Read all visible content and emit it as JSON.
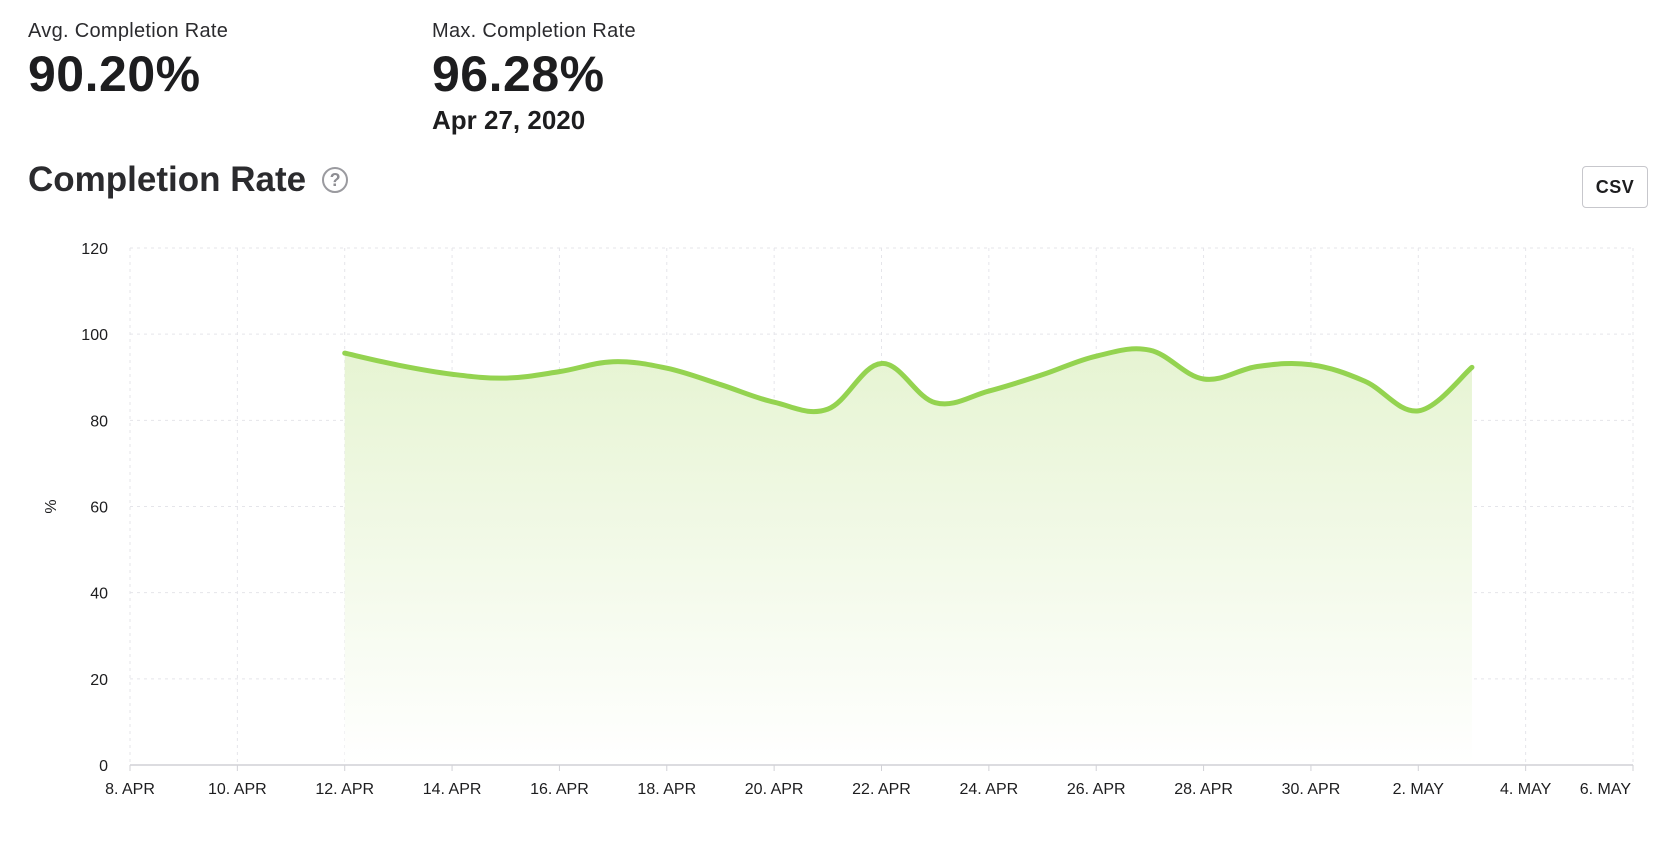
{
  "stats": {
    "avg": {
      "label": "Avg. Completion Rate",
      "value": "90.20%"
    },
    "max": {
      "label": "Max. Completion Rate",
      "value": "96.28%",
      "date": "Apr 27, 2020"
    }
  },
  "section": {
    "title": "Completion Rate",
    "help_icon": "question-circle-icon",
    "csv_label": "CSV"
  },
  "colors": {
    "line": "#94d350",
    "area_top": "#e8f5d6",
    "grid": "#e5e5ea",
    "axis": "#d1d1d6"
  },
  "chart_data": {
    "type": "area",
    "ylabel": "%",
    "xlabel": "",
    "ylim": [
      0,
      120
    ],
    "yticks": [
      "0",
      "20",
      "40",
      "60",
      "80",
      "100",
      "120"
    ],
    "x_ticks": [
      "8. APR",
      "10. APR",
      "12. APR",
      "14. APR",
      "16. APR",
      "18. APR",
      "20. APR",
      "22. APR",
      "24. APR",
      "26. APR",
      "28. APR",
      "30. APR",
      "2. MAY",
      "4. MAY",
      "6. MAY"
    ],
    "xlim": [
      "2020-04-08",
      "2020-05-06"
    ],
    "grid": true,
    "series": [
      {
        "points": [
          {
            "date": "2020-04-12",
            "value": 95.6
          },
          {
            "date": "2020-04-13",
            "value": 92.8
          },
          {
            "date": "2020-04-14",
            "value": 90.7
          },
          {
            "date": "2020-04-15",
            "value": 89.8
          },
          {
            "date": "2020-04-16",
            "value": 91.3
          },
          {
            "date": "2020-04-17",
            "value": 93.6
          },
          {
            "date": "2020-04-18",
            "value": 92.1
          },
          {
            "date": "2020-04-19",
            "value": 88.3
          },
          {
            "date": "2020-04-20",
            "value": 84.2
          },
          {
            "date": "2020-04-21",
            "value": 82.6
          },
          {
            "date": "2020-04-22",
            "value": 93.2
          },
          {
            "date": "2020-04-23",
            "value": 84.1
          },
          {
            "date": "2020-04-24",
            "value": 86.8
          },
          {
            "date": "2020-04-25",
            "value": 90.6
          },
          {
            "date": "2020-04-26",
            "value": 94.9
          },
          {
            "date": "2020-04-27",
            "value": 96.28
          },
          {
            "date": "2020-04-28",
            "value": 89.6
          },
          {
            "date": "2020-04-29",
            "value": 92.5
          },
          {
            "date": "2020-04-30",
            "value": 92.9
          },
          {
            "date": "2020-05-01",
            "value": 89.1
          },
          {
            "date": "2020-05-02",
            "value": 82.2
          },
          {
            "date": "2020-05-03",
            "value": 92.3
          }
        ]
      }
    ]
  }
}
